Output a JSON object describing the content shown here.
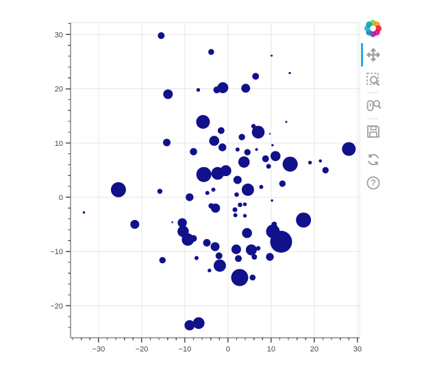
{
  "chart_data": {
    "type": "scatter",
    "title": "",
    "xlabel": "",
    "ylabel": "",
    "x_ticks": [
      -30,
      -20,
      -10,
      0,
      10,
      20,
      30
    ],
    "y_ticks": [
      30,
      20,
      10,
      0,
      -10,
      -20
    ],
    "xlim": [
      -36.5,
      30.5
    ],
    "ylim": [
      -25.9,
      32.2
    ],
    "minor_tick_step": 2,
    "grid": true,
    "legend": null,
    "marker_color": "#11118c",
    "points": [
      [
        -15.5,
        29.8,
        5.0
      ],
      [
        -3.9,
        26.8,
        4.3
      ],
      [
        10.1,
        26.1,
        1.5
      ],
      [
        14.3,
        22.9,
        1.6
      ],
      [
        6.4,
        22.3,
        5.0
      ],
      [
        -13.9,
        19.0,
        7.0
      ],
      [
        -6.9,
        19.8,
        2.7
      ],
      [
        -1.2,
        20.2,
        8.0
      ],
      [
        -2.6,
        19.8,
        5.0
      ],
      [
        4.1,
        20.1,
        6.5
      ],
      [
        -5.8,
        13.9,
        10.0
      ],
      [
        -1.6,
        12.3,
        5.0
      ],
      [
        5.9,
        13.1,
        3.3
      ],
      [
        7.0,
        12.0,
        9.3
      ],
      [
        9.7,
        11.7,
        1.2
      ],
      [
        13.5,
        13.9,
        1.5
      ],
      [
        3.2,
        11.1,
        4.7
      ],
      [
        -14.2,
        10.1,
        5.5
      ],
      [
        -8.0,
        8.4,
        5.3
      ],
      [
        -3.2,
        10.4,
        7.3
      ],
      [
        -1.3,
        9.2,
        5.7
      ],
      [
        2.2,
        8.8,
        3.0
      ],
      [
        4.5,
        8.3,
        4.7
      ],
      [
        10.3,
        9.6,
        1.7
      ],
      [
        6.6,
        8.8,
        2.0
      ],
      [
        3.7,
        6.5,
        8.3
      ],
      [
        8.7,
        7.1,
        5.0
      ],
      [
        9.4,
        5.7,
        3.5
      ],
      [
        11.0,
        7.6,
        7.3
      ],
      [
        14.4,
        6.1,
        11.0
      ],
      [
        19.0,
        6.4,
        2.7
      ],
      [
        21.4,
        6.7,
        2.3
      ],
      [
        22.6,
        5.0,
        4.7
      ],
      [
        28.0,
        8.9,
        10.0
      ],
      [
        -25.4,
        1.4,
        11.0
      ],
      [
        -15.8,
        1.1,
        3.7
      ],
      [
        -5.6,
        4.2,
        11.0
      ],
      [
        -2.4,
        4.4,
        9.3
      ],
      [
        -0.5,
        4.9,
        8.0
      ],
      [
        2.2,
        3.2,
        6.0
      ],
      [
        4.6,
        1.4,
        9.0
      ],
      [
        7.7,
        1.9,
        3.0
      ],
      [
        12.6,
        2.5,
        4.7
      ],
      [
        -8.9,
        0.0,
        5.7
      ],
      [
        -4.8,
        0.8,
        3.0
      ],
      [
        -3.4,
        1.4,
        3.0
      ],
      [
        2.0,
        0.5,
        3.3
      ],
      [
        10.2,
        -0.6,
        1.7
      ],
      [
        -33.4,
        -2.8,
        1.7
      ],
      [
        -21.6,
        -5.0,
        6.5
      ],
      [
        -12.9,
        -4.6,
        1.3
      ],
      [
        -10.6,
        -4.7,
        6.7
      ],
      [
        -10.4,
        -6.3,
        8.3
      ],
      [
        -9.3,
        -7.8,
        9.0
      ],
      [
        -8.0,
        -7.6,
        5.0
      ],
      [
        -2.9,
        -2.0,
        6.7
      ],
      [
        -3.9,
        -1.6,
        4.0
      ],
      [
        2.8,
        -1.4,
        3.3
      ],
      [
        3.9,
        -1.3,
        2.7
      ],
      [
        1.6,
        -2.3,
        3.5
      ],
      [
        1.7,
        -3.3,
        3.0
      ],
      [
        3.9,
        -3.4,
        2.7
      ],
      [
        17.5,
        -4.2,
        11.0
      ],
      [
        10.4,
        -6.3,
        10.0
      ],
      [
        12.3,
        -8.2,
        16.0
      ],
      [
        10.7,
        -5.0,
        4.0
      ],
      [
        4.4,
        -6.6,
        7.3
      ],
      [
        -4.9,
        -8.4,
        5.5
      ],
      [
        -3.0,
        -9.1,
        6.5
      ],
      [
        -15.2,
        -11.6,
        4.7
      ],
      [
        -7.3,
        -11.2,
        3.0
      ],
      [
        -2.1,
        -10.8,
        5.0
      ],
      [
        1.9,
        -9.6,
        7.0
      ],
      [
        2.4,
        -11.3,
        5.0
      ],
      [
        5.4,
        -9.7,
        8.0
      ],
      [
        6.1,
        -11.0,
        4.0
      ],
      [
        7.0,
        -9.4,
        3.3
      ],
      [
        9.7,
        -11.0,
        5.7
      ],
      [
        -4.3,
        -13.5,
        2.7
      ],
      [
        -1.9,
        -12.6,
        9.0
      ],
      [
        2.7,
        -14.8,
        12.5
      ],
      [
        5.7,
        -14.8,
        4.3
      ],
      [
        -8.9,
        -23.6,
        7.5
      ],
      [
        -6.8,
        -23.2,
        8.5
      ]
    ]
  },
  "toolbar": {
    "logo": "bokeh-logo",
    "active_indicator_color": "#26aae1",
    "tools": [
      {
        "id": "pan",
        "active": true
      },
      {
        "id": "box-zoom",
        "active": false
      },
      {
        "id": "wheel-zoom",
        "active": false
      },
      {
        "id": "save",
        "active": false
      },
      {
        "id": "reset",
        "active": false
      },
      {
        "id": "help",
        "active": false
      }
    ]
  },
  "colors": {
    "background": "#ffffff",
    "grid": "#e5e5e5",
    "outline": "#e5e5e5",
    "axis": "#4a4a4a",
    "tick_label": "#444444",
    "marker": "#11118c",
    "icon": "#9e9e9e",
    "logo_ring": [
      "#8dc63f",
      "#f7941e",
      "#ed1c24",
      "#ec008c",
      "#93278f",
      "#1b75bc",
      "#29abe2",
      "#00a99d"
    ]
  }
}
